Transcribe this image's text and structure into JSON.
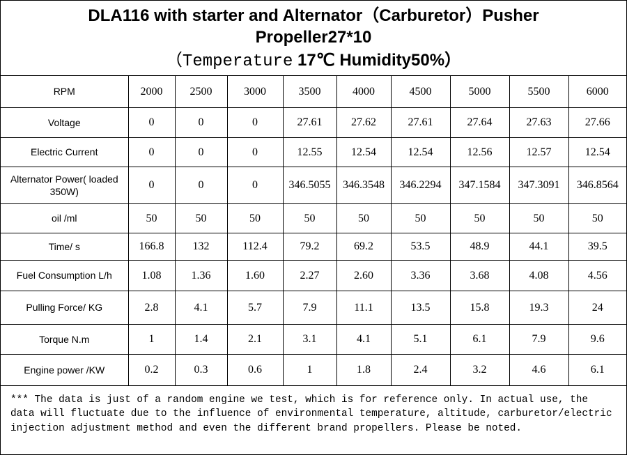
{
  "header": {
    "title": "DLA116 with starter and Alternator（Carburetor）Pusher Propeller27*10",
    "conditions_prefix": "（Temperature",
    "conditions": "17℃ Humidity50%）"
  },
  "table": {
    "rows": [
      [
        "RPM",
        "2000",
        "2500",
        "3000",
        "3500",
        "4000",
        "4500",
        "5000",
        "5500",
        "6000"
      ],
      [
        "Voltage",
        "0",
        "0",
        "0",
        "27.61",
        "27.62",
        "27.61",
        "27.64",
        "27.63",
        "27.66"
      ],
      [
        "Electric  Current",
        "0",
        "0",
        "0",
        "12.55",
        "12.54",
        "12.54",
        "12.56",
        "12.57",
        "12.54"
      ],
      [
        "Alternator Power( loaded 350W)",
        "0",
        "0",
        "0",
        "346.5055",
        "346.3548",
        "346.2294",
        "347.1584",
        "347.3091",
        "346.8564"
      ],
      [
        "oil /ml",
        "50",
        "50",
        "50",
        "50",
        "50",
        "50",
        "50",
        "50",
        "50"
      ],
      [
        "Time/ s",
        "166.8",
        "132",
        "112.4",
        "79.2",
        "69.2",
        "53.5",
        "48.9",
        "44.1",
        "39.5"
      ],
      [
        "Fuel Consumption L/h",
        "1.08",
        "1.36",
        "1.60",
        "2.27",
        "2.60",
        "3.36",
        "3.68",
        "4.08",
        "4.56"
      ],
      [
        "Pulling Force/ KG",
        "2.8",
        "4.1",
        "5.7",
        "7.9",
        "11.1",
        "13.5",
        "15.8",
        "19.3",
        "24"
      ],
      [
        "Torque  N.m",
        "1",
        "1.4",
        "2.1",
        "3.1",
        "4.1",
        "5.1",
        "6.1",
        "7.9",
        "9.6"
      ],
      [
        "Engine power /KW",
        "0.2",
        "0.3",
        "0.6",
        "1",
        "1.8",
        "2.4",
        "3.2",
        "4.6",
        "6.1"
      ]
    ]
  },
  "note": "*** The data is just of a random engine we test, which is for reference only.  In actual use, the data will fluctuate due to the influence of environmental temperature, altitude, carburetor/electric injection adjustment method and even the different brand propellers. Please be noted."
}
